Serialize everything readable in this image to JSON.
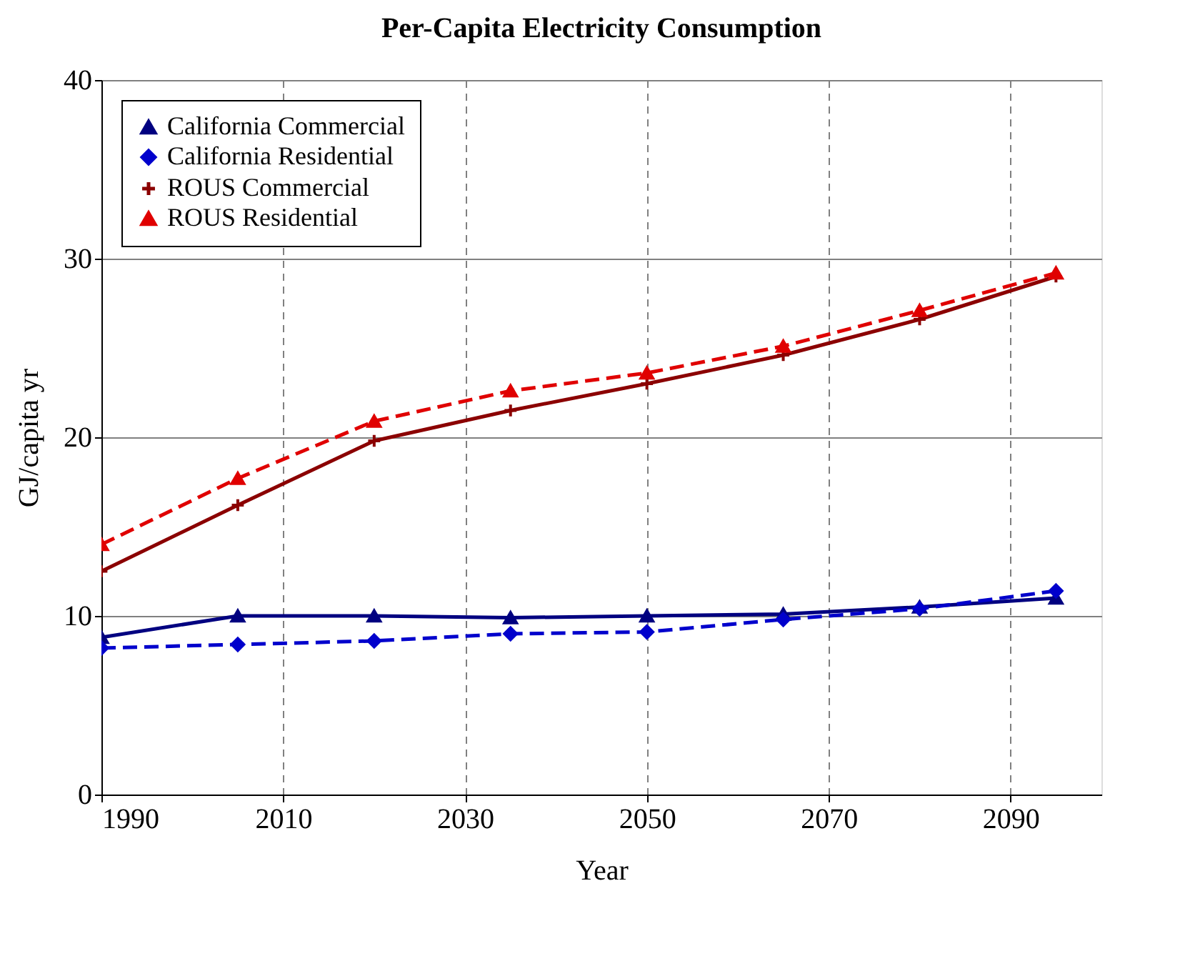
{
  "chart_data": {
    "type": "line",
    "title": "Per-Capita Electricity Consumption",
    "xlabel": "Year",
    "ylabel": "GJ/capita yr",
    "x": [
      1990,
      2005,
      2020,
      2035,
      2050,
      2065,
      2080,
      2095
    ],
    "series": [
      {
        "name": "California Commercial",
        "color": "#000080",
        "marker": "triangle",
        "line_style": "solid",
        "values": [
          8.8,
          10.0,
          10.0,
          9.9,
          10.0,
          10.1,
          10.5,
          11.0
        ]
      },
      {
        "name": "California Residential",
        "color": "#0000cc",
        "marker": "diamond",
        "line_style": "dashed",
        "values": [
          8.2,
          8.4,
          8.6,
          9.0,
          9.1,
          9.8,
          10.4,
          11.4
        ]
      },
      {
        "name": "ROUS Commercial",
        "color": "#8b0000",
        "marker": "cross",
        "line_style": "solid",
        "values": [
          12.5,
          16.2,
          19.8,
          21.5,
          23.0,
          24.6,
          26.6,
          29.0
        ]
      },
      {
        "name": "ROUS Residential",
        "color": "#e00000",
        "marker": "triangle",
        "line_style": "dashed",
        "values": [
          14.0,
          17.7,
          20.9,
          22.6,
          23.6,
          25.1,
          27.1,
          29.2
        ]
      }
    ],
    "xlim": [
      1990,
      2100
    ],
    "xticks": [
      1990,
      2010,
      2030,
      2050,
      2070,
      2090
    ],
    "ylim": [
      0,
      40
    ],
    "yticks": [
      0,
      10,
      20,
      30,
      40
    ],
    "grid": true,
    "legend": "top left"
  }
}
